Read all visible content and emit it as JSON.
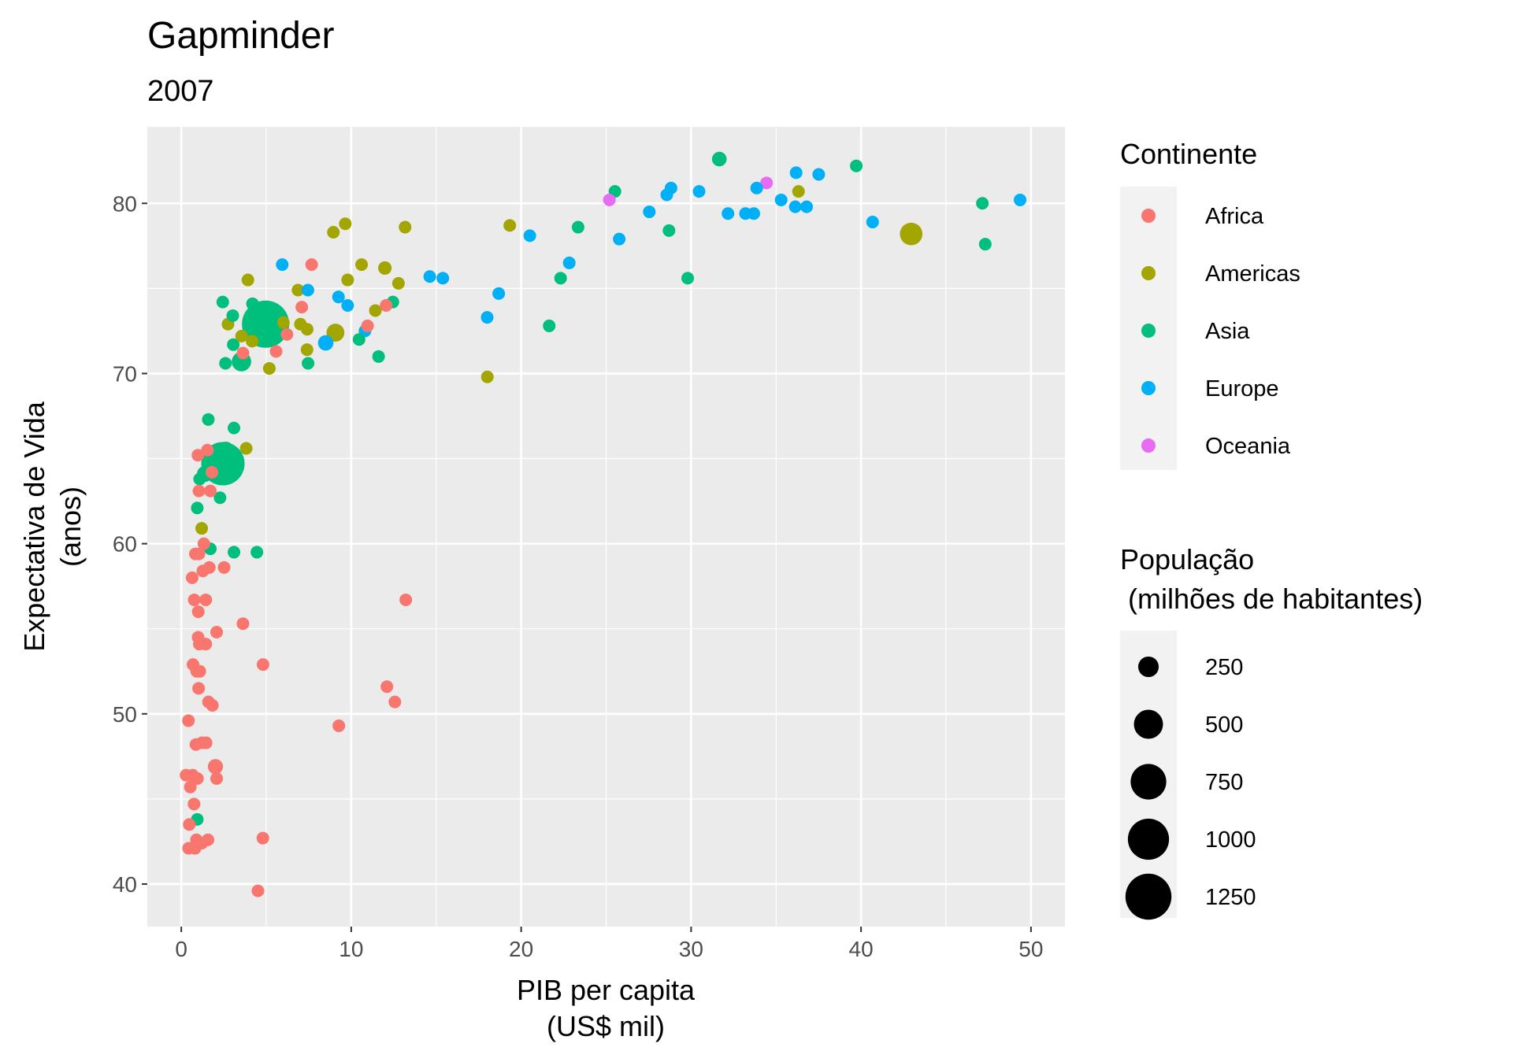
{
  "chart_data": {
    "type": "scatter",
    "title": "Gapminder",
    "subtitle": "2007",
    "xlabel": [
      "PIB per capita",
      "(US$ mil)"
    ],
    "ylabel": [
      "Expectativa de Vida",
      "(anos)"
    ],
    "xlim": [
      -2,
      52
    ],
    "ylim": [
      37.5,
      84.5
    ],
    "xticks": [
      0,
      10,
      20,
      30,
      40,
      50
    ],
    "yticks": [
      40,
      50,
      60,
      70,
      80
    ],
    "grid": true,
    "legend_position": "right",
    "color_legend": {
      "title": "Continente",
      "entries": [
        {
          "label": "Africa",
          "color": "#F8766D"
        },
        {
          "label": "Americas",
          "color": "#A3A500"
        },
        {
          "label": "Asia",
          "color": "#00BF7D"
        },
        {
          "label": "Europe",
          "color": "#00B0F6"
        },
        {
          "label": "Oceania",
          "color": "#E76BF3"
        }
      ]
    },
    "size_legend": {
      "title": [
        "População",
        " (milhões de habitantes)"
      ],
      "entries": [
        250,
        500,
        750,
        1000,
        1250
      ]
    },
    "points": [
      {
        "c": "Asia",
        "x": 4.96,
        "y": 72.9,
        "p": 1319
      },
      {
        "c": "Asia",
        "x": 2.45,
        "y": 64.7,
        "p": 1110
      },
      {
        "c": "Americas",
        "x": 42.95,
        "y": 78.2,
        "p": 301
      },
      {
        "c": "Asia",
        "x": 3.54,
        "y": 70.7,
        "p": 223
      },
      {
        "c": "Americas",
        "x": 9.07,
        "y": 72.4,
        "p": 190
      },
      {
        "c": "Asia",
        "x": 2.61,
        "y": 65.5,
        "p": 169
      },
      {
        "c": "Asia",
        "x": 1.39,
        "y": 64.1,
        "p": 150
      },
      {
        "c": "Africa",
        "x": 2.01,
        "y": 46.9,
        "p": 135
      },
      {
        "c": "Europe",
        "x": 8.5,
        "y": 71.8,
        "p": 141
      },
      {
        "c": "Asia",
        "x": 31.66,
        "y": 82.6,
        "p": 127
      },
      {
        "c": "Americas",
        "x": 11.98,
        "y": 76.2,
        "p": 108
      },
      {
        "c": "Asia",
        "x": 7.46,
        "y": 70.6,
        "p": 86
      },
      {
        "c": "Asia",
        "x": 2.44,
        "y": 74.2,
        "p": 85
      },
      {
        "c": "Africa",
        "x": 5.58,
        "y": 71.3,
        "p": 80
      },
      {
        "c": "Africa",
        "x": 0.69,
        "y": 52.9,
        "p": 76
      },
      {
        "c": "Europe",
        "x": 32.17,
        "y": 79.4,
        "p": 82
      },
      {
        "c": "Asia",
        "x": 11.61,
        "y": 71.0,
        "p": 69
      },
      {
        "c": "Asia",
        "x": 3.06,
        "y": 71.7,
        "p": 65
      },
      {
        "c": "Europe",
        "x": 30.47,
        "y": 80.7,
        "p": 61
      },
      {
        "c": "Europe",
        "x": 33.2,
        "y": 79.4,
        "p": 61
      },
      {
        "c": "Europe",
        "x": 28.57,
        "y": 80.5,
        "p": 58
      },
      {
        "c": "Asia",
        "x": 0.94,
        "y": 62.1,
        "p": 47
      },
      {
        "c": "Africa",
        "x": 9.27,
        "y": 49.3,
        "p": 44
      },
      {
        "c": "Asia",
        "x": 23.35,
        "y": 78.6,
        "p": 49
      },
      {
        "c": "Europe",
        "x": 28.82,
        "y": 80.9,
        "p": 40
      },
      {
        "c": "Americas",
        "x": 12.78,
        "y": 75.3,
        "p": 40
      },
      {
        "c": "Americas",
        "x": 7.01,
        "y": 72.9,
        "p": 44
      },
      {
        "c": "Africa",
        "x": 1.06,
        "y": 54.1,
        "p": 38
      },
      {
        "c": "Africa",
        "x": 1.46,
        "y": 48.3,
        "p": 33
      },
      {
        "c": "Europe",
        "x": 15.39,
        "y": 75.6,
        "p": 39
      },
      {
        "c": "Africa",
        "x": 6.22,
        "y": 72.3,
        "p": 33
      },
      {
        "c": "Africa",
        "x": 4.8,
        "y": 42.7,
        "p": 25
      },
      {
        "c": "Americas",
        "x": 36.32,
        "y": 80.7,
        "p": 34
      },
      {
        "c": "Africa",
        "x": 1.65,
        "y": 58.6,
        "p": 38
      },
      {
        "c": "Africa",
        "x": 1.02,
        "y": 51.5,
        "p": 32
      },
      {
        "c": "Africa",
        "x": 1.44,
        "y": 54.1,
        "p": 41
      },
      {
        "c": "Africa",
        "x": 2.52,
        "y": 58.6,
        "p": 28
      },
      {
        "c": "Asia",
        "x": 3.1,
        "y": 59.5,
        "p": 28
      },
      {
        "c": "Asia",
        "x": 12.45,
        "y": 74.2,
        "p": 24
      },
      {
        "c": "Americas",
        "x": 11.42,
        "y": 73.7,
        "p": 26
      },
      {
        "c": "Americas",
        "x": 7.4,
        "y": 71.4,
        "p": 28
      },
      {
        "c": "Africa",
        "x": 0.91,
        "y": 52.5,
        "p": 26
      },
      {
        "c": "Africa",
        "x": 1.22,
        "y": 48.3,
        "p": 35
      },
      {
        "c": "Asia",
        "x": 2.28,
        "y": 62.7,
        "p": 22
      },
      {
        "c": "Africa",
        "x": 1.6,
        "y": 50.7,
        "p": 20
      },
      {
        "c": "Europe",
        "x": 35.3,
        "y": 80.2,
        "p": 20
      },
      {
        "c": "Asia",
        "x": 1.08,
        "y": 63.8,
        "p": 27
      },
      {
        "c": "Asia",
        "x": 4.45,
        "y": 59.5,
        "p": 22
      },
      {
        "c": "Africa",
        "x": 1.04,
        "y": 63.1,
        "p": 22
      },
      {
        "c": "Africa",
        "x": 0.43,
        "y": 42.1,
        "p": 18
      },
      {
        "c": "Africa",
        "x": 1.83,
        "y": 50.5,
        "p": 24
      },
      {
        "c": "Africa",
        "x": 2.08,
        "y": 46.2,
        "p": 20
      },
      {
        "c": "Africa",
        "x": 0.67,
        "y": 46.4,
        "p": 13
      },
      {
        "c": "Asia",
        "x": 21.65,
        "y": 72.8,
        "p": 24
      },
      {
        "c": "Africa",
        "x": 0.76,
        "y": 56.7,
        "p": 20
      },
      {
        "c": "Africa",
        "x": 3.63,
        "y": 71.2,
        "p": 17
      },
      {
        "c": "Americas",
        "x": 6.87,
        "y": 74.9,
        "p": 15
      },
      {
        "c": "Asia",
        "x": 2.6,
        "y": 70.6,
        "p": 17
      },
      {
        "c": "Americas",
        "x": 3.92,
        "y": 75.5,
        "p": 16
      },
      {
        "c": "Americas",
        "x": 6.01,
        "y": 73.0,
        "p": 12
      },
      {
        "c": "Europe",
        "x": 36.8,
        "y": 79.8,
        "p": 16
      },
      {
        "c": "Europe",
        "x": 10.81,
        "y": 72.5,
        "p": 21
      },
      {
        "c": "Asia",
        "x": 1.71,
        "y": 59.7,
        "p": 19
      },
      {
        "c": "Africa",
        "x": 1.27,
        "y": 58.4,
        "p": 22
      },
      {
        "c": "Europe",
        "x": 33.69,
        "y": 79.4,
        "p": 10
      },
      {
        "c": "Europe",
        "x": 36.13,
        "y": 79.8,
        "p": 10
      },
      {
        "c": "Europe",
        "x": 9.79,
        "y": 74.0,
        "p": 10
      },
      {
        "c": "Europe",
        "x": 22.83,
        "y": 76.5,
        "p": 10
      },
      {
        "c": "Europe",
        "x": 18.0,
        "y": 73.3,
        "p": 10
      },
      {
        "c": "Europe",
        "x": 40.68,
        "y": 78.9,
        "p": 9
      },
      {
        "c": "Europe",
        "x": 33.86,
        "y": 80.9,
        "p": 8
      },
      {
        "c": "Europe",
        "x": 37.51,
        "y": 81.7,
        "p": 7
      },
      {
        "c": "Europe",
        "x": 5.94,
        "y": 76.4,
        "p": 4
      },
      {
        "c": "Europe",
        "x": 7.45,
        "y": 74.9,
        "p": 4
      },
      {
        "c": "Europe",
        "x": 14.62,
        "y": 75.7,
        "p": 4
      },
      {
        "c": "Europe",
        "x": 9.25,
        "y": 74.5,
        "p": 4
      },
      {
        "c": "Europe",
        "x": 18.68,
        "y": 74.7,
        "p": 5
      },
      {
        "c": "Europe",
        "x": 20.51,
        "y": 78.1,
        "p": 5
      },
      {
        "c": "Europe",
        "x": 25.77,
        "y": 77.9,
        "p": 2
      },
      {
        "c": "Europe",
        "x": 36.18,
        "y": 81.8,
        "p": 1
      },
      {
        "c": "Europe",
        "x": 27.54,
        "y": 79.5,
        "p": 5
      },
      {
        "c": "Europe",
        "x": 49.36,
        "y": 80.2,
        "p": 5
      },
      {
        "c": "Oceania",
        "x": 34.44,
        "y": 81.2,
        "p": 20
      },
      {
        "c": "Oceania",
        "x": 25.19,
        "y": 80.2,
        "p": 4
      },
      {
        "c": "Americas",
        "x": 13.17,
        "y": 78.6,
        "p": 4
      },
      {
        "c": "Americas",
        "x": 8.95,
        "y": 78.3,
        "p": 11
      },
      {
        "c": "Americas",
        "x": 9.65,
        "y": 78.8,
        "p": 4
      },
      {
        "c": "Americas",
        "x": 10.61,
        "y": 76.4,
        "p": 3
      },
      {
        "c": "Americas",
        "x": 19.33,
        "y": 78.7,
        "p": 4
      },
      {
        "c": "Americas",
        "x": 18.01,
        "y": 69.8,
        "p": 1
      },
      {
        "c": "Americas",
        "x": 9.79,
        "y": 75.5,
        "p": 3
      },
      {
        "c": "Americas",
        "x": 5.18,
        "y": 70.3,
        "p": 9
      },
      {
        "c": "Americas",
        "x": 4.17,
        "y": 71.9,
        "p": 12
      },
      {
        "c": "Americas",
        "x": 7.41,
        "y": 72.6,
        "p": 5
      },
      {
        "c": "Americas",
        "x": 2.75,
        "y": 72.9,
        "p": 8
      },
      {
        "c": "Americas",
        "x": 3.55,
        "y": 72.2,
        "p": 7
      },
      {
        "c": "Americas",
        "x": 3.82,
        "y": 65.6,
        "p": 9
      },
      {
        "c": "Americas",
        "x": 1.2,
        "y": 60.9,
        "p": 9
      },
      {
        "c": "Asia",
        "x": 25.52,
        "y": 80.7,
        "p": 7
      },
      {
        "c": "Asia",
        "x": 39.72,
        "y": 82.2,
        "p": 5
      },
      {
        "c": "Asia",
        "x": 47.14,
        "y": 80.0,
        "p": 5
      },
      {
        "c": "Asia",
        "x": 47.31,
        "y": 77.6,
        "p": 3
      },
      {
        "c": "Asia",
        "x": 28.7,
        "y": 78.4,
        "p": 20
      },
      {
        "c": "Asia",
        "x": 22.32,
        "y": 75.6,
        "p": 2
      },
      {
        "c": "Asia",
        "x": 29.8,
        "y": 75.6,
        "p": 1
      },
      {
        "c": "Asia",
        "x": 10.46,
        "y": 72.0,
        "p": 4
      },
      {
        "c": "Asia",
        "x": 3.03,
        "y": 73.4,
        "p": 6
      },
      {
        "c": "Asia",
        "x": 4.19,
        "y": 74.1,
        "p": 14
      },
      {
        "c": "Asia",
        "x": 1.59,
        "y": 67.3,
        "p": 14
      },
      {
        "c": "Asia",
        "x": 3.1,
        "y": 66.8,
        "p": 3
      },
      {
        "c": "Asia",
        "x": 0.94,
        "y": 43.8,
        "p": 32
      },
      {
        "c": "Africa",
        "x": 7.67,
        "y": 76.4,
        "p": 3
      },
      {
        "c": "Africa",
        "x": 12.05,
        "y": 74.0,
        "p": 6
      },
      {
        "c": "Africa",
        "x": 10.96,
        "y": 72.8,
        "p": 3
      },
      {
        "c": "Africa",
        "x": 7.09,
        "y": 73.9,
        "p": 10
      },
      {
        "c": "Africa",
        "x": 13.21,
        "y": 56.7,
        "p": 1
      },
      {
        "c": "Africa",
        "x": 12.1,
        "y": 51.6,
        "p": 2
      },
      {
        "c": "Africa",
        "x": 12.57,
        "y": 50.7,
        "p": 1
      },
      {
        "c": "Africa",
        "x": 4.81,
        "y": 52.9,
        "p": 2
      },
      {
        "c": "Africa",
        "x": 4.51,
        "y": 39.6,
        "p": 1
      },
      {
        "c": "Africa",
        "x": 3.63,
        "y": 55.3,
        "p": 3
      },
      {
        "c": "Africa",
        "x": 2.08,
        "y": 54.8,
        "p": 1
      },
      {
        "c": "Africa",
        "x": 1.8,
        "y": 64.2,
        "p": 3
      },
      {
        "c": "Africa",
        "x": 1.71,
        "y": 63.1,
        "p": 5
      },
      {
        "c": "Africa",
        "x": 1.54,
        "y": 65.5,
        "p": 1
      },
      {
        "c": "Africa",
        "x": 1.33,
        "y": 60.0,
        "p": 8
      },
      {
        "c": "Africa",
        "x": 0.98,
        "y": 65.2,
        "p": 1
      },
      {
        "c": "Africa",
        "x": 0.64,
        "y": 58.0,
        "p": 2
      },
      {
        "c": "Africa",
        "x": 1.04,
        "y": 59.4,
        "p": 5
      },
      {
        "c": "Africa",
        "x": 0.99,
        "y": 54.5,
        "p": 12
      },
      {
        "c": "Africa",
        "x": 1.09,
        "y": 52.5,
        "p": 10
      },
      {
        "c": "Africa",
        "x": 1.0,
        "y": 56.0,
        "p": 6
      },
      {
        "c": "Africa",
        "x": 0.42,
        "y": 49.6,
        "p": 4
      },
      {
        "c": "Africa",
        "x": 0.86,
        "y": 48.2,
        "p": 14
      },
      {
        "c": "Africa",
        "x": 0.75,
        "y": 44.7,
        "p": 2
      },
      {
        "c": "Africa",
        "x": 0.53,
        "y": 45.7,
        "p": 5
      },
      {
        "c": "Africa",
        "x": 0.47,
        "y": 43.5,
        "p": 13
      },
      {
        "c": "Africa",
        "x": 0.28,
        "y": 46.4,
        "p": 64
      },
      {
        "c": "Africa",
        "x": 0.89,
        "y": 42.6,
        "p": 12
      },
      {
        "c": "Africa",
        "x": 1.57,
        "y": 42.6,
        "p": 6
      },
      {
        "c": "Africa",
        "x": 1.2,
        "y": 42.4,
        "p": 4
      },
      {
        "c": "Africa",
        "x": 0.81,
        "y": 42.1,
        "p": 22
      },
      {
        "c": "Africa",
        "x": 0.95,
        "y": 46.2,
        "p": 18
      },
      {
        "c": "Africa",
        "x": 0.83,
        "y": 59.4,
        "p": 9
      },
      {
        "c": "Africa",
        "x": 1.44,
        "y": 56.7,
        "p": 6
      }
    ]
  }
}
